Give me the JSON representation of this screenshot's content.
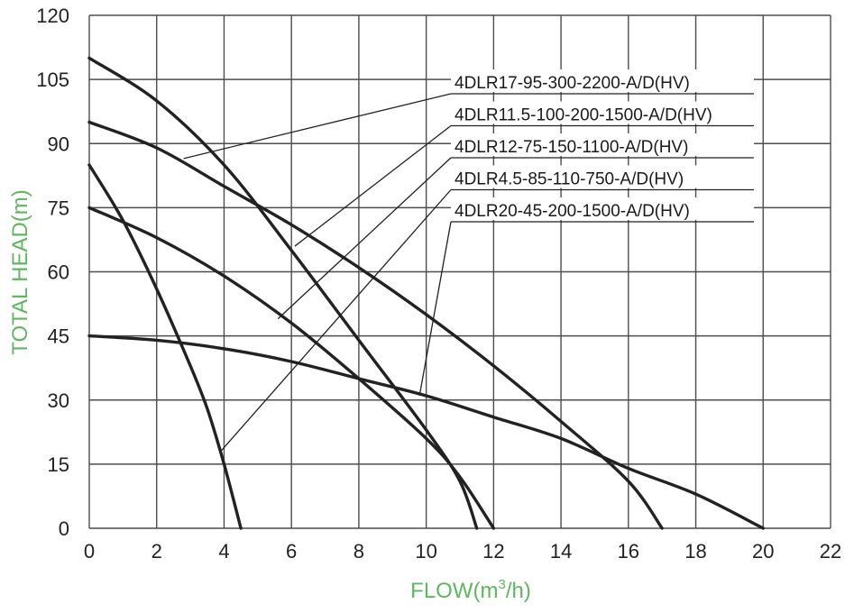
{
  "chart_data": {
    "type": "line",
    "xlabel": "FLOW(m",
    "xlabel_sup": "3",
    "xlabel_tail": "/h)",
    "ylabel": "TOTAL HEAD(m)",
    "xlim": [
      0,
      22
    ],
    "ylim": [
      0,
      120
    ],
    "xticks": [
      0,
      2,
      4,
      6,
      8,
      10,
      12,
      14,
      16,
      18,
      20,
      22
    ],
    "yticks": [
      0,
      15,
      30,
      45,
      60,
      75,
      90,
      105,
      120
    ],
    "grid": true,
    "axis_title_color": "#5cb85c",
    "line_color": "#222222",
    "series": [
      {
        "name": "4DLR17-95-300-2200-A/D(HV)",
        "points": [
          [
            0,
            95
          ],
          [
            2,
            89
          ],
          [
            4,
            80
          ],
          [
            6,
            71
          ],
          [
            8,
            61
          ],
          [
            10,
            50
          ],
          [
            12,
            38
          ],
          [
            14,
            25
          ],
          [
            16,
            11
          ],
          [
            17,
            0
          ]
        ],
        "label_anchor": [
          2.8,
          86.5
        ]
      },
      {
        "name": "4DLR11.5-100-200-1500-A/D(HV)",
        "points": [
          [
            0,
            110
          ],
          [
            2,
            100
          ],
          [
            4,
            85
          ],
          [
            6,
            65
          ],
          [
            8,
            44
          ],
          [
            10,
            23
          ],
          [
            11,
            11
          ],
          [
            11.5,
            0
          ]
        ],
        "label_anchor": [
          6.1,
          66
        ]
      },
      {
        "name": "4DLR12-75-150-1100-A/D(HV)",
        "points": [
          [
            0,
            75
          ],
          [
            2,
            68
          ],
          [
            4,
            59
          ],
          [
            6,
            48
          ],
          [
            8,
            35
          ],
          [
            10,
            21
          ],
          [
            11,
            12
          ],
          [
            12,
            0
          ]
        ],
        "label_anchor": [
          5.6,
          49
        ]
      },
      {
        "name": "4DLR4.5-85-110-750-A/D(HV)",
        "points": [
          [
            0,
            85
          ],
          [
            1,
            72
          ],
          [
            2,
            56
          ],
          [
            3,
            38
          ],
          [
            3.5,
            28
          ],
          [
            4,
            15
          ],
          [
            4.5,
            0
          ]
        ],
        "label_anchor": [
          3.9,
          18
        ]
      },
      {
        "name": "4DLR20-45-200-1500-A/D(HV)",
        "points": [
          [
            0,
            45
          ],
          [
            2,
            44
          ],
          [
            4,
            42
          ],
          [
            6,
            39
          ],
          [
            8,
            35
          ],
          [
            10,
            31
          ],
          [
            12,
            26
          ],
          [
            14,
            21
          ],
          [
            16,
            14
          ],
          [
            18,
            8
          ],
          [
            20,
            0
          ]
        ],
        "label_anchor": [
          9.8,
          31
        ]
      }
    ]
  }
}
